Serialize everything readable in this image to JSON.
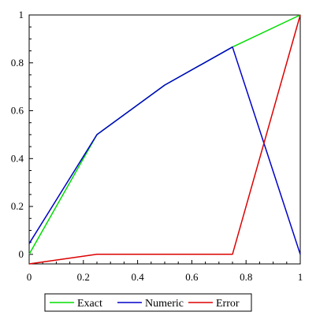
{
  "chart_data": {
    "type": "line",
    "title": "",
    "xlabel": "",
    "ylabel": "",
    "xlim": [
      0,
      1
    ],
    "ylim": [
      -0.04,
      1
    ],
    "x_ticks": [
      0,
      0.2,
      0.4,
      0.6,
      0.8,
      1
    ],
    "y_ticks": [
      0,
      0.2,
      0.4,
      0.6,
      0.8,
      1
    ],
    "x_tick_labels": [
      "0",
      "0.2",
      "0.4",
      "0.6",
      "0.8",
      "1"
    ],
    "y_tick_labels": [
      "0",
      "0.2",
      "0.4",
      "0.6",
      "0.8",
      "1"
    ],
    "grid": false,
    "legend_position": "bottom",
    "series": [
      {
        "name": "Exact",
        "color": "#00dd00",
        "x": [
          0,
          0.25,
          0.5,
          0.75,
          1
        ],
        "y": [
          0,
          0.5,
          0.707,
          0.866,
          1
        ]
      },
      {
        "name": "Numeric",
        "color": "#0000c8",
        "x": [
          0,
          0.25,
          0.5,
          0.75,
          1
        ],
        "y": [
          0.045,
          0.5,
          0.707,
          0.866,
          0
        ]
      },
      {
        "name": "Error",
        "color": "#dd0000",
        "x": [
          0,
          0.25,
          0.5,
          0.75,
          1
        ],
        "y": [
          -0.04,
          0,
          0,
          0,
          1
        ]
      }
    ]
  }
}
